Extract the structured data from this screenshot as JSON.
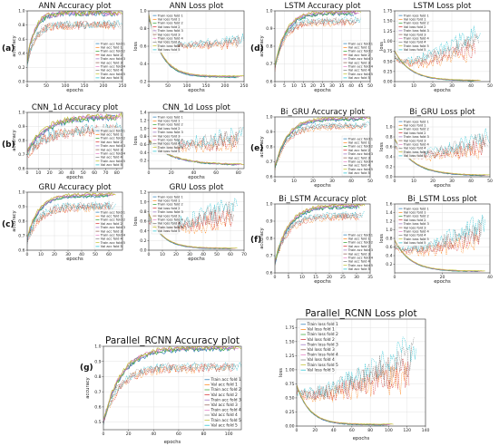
{
  "colors": [
    "#1f77b4",
    "#ff7f0e",
    "#2ca02c",
    "#d62728",
    "#9467bd",
    "#8c564b",
    "#e377c2",
    "#7f7f7f",
    "#bcbd22",
    "#17becf"
  ],
  "panel_labels": [
    "(a)",
    "(b)",
    "(c)",
    "(d)",
    "(e)",
    "(f)",
    "(g)"
  ],
  "chart_data": [
    {
      "id": "ann-acc",
      "type": "line",
      "title": "ANN Accuracy plot",
      "xlabel": "epochs",
      "ylabel": "accuracy",
      "xlim": [
        0,
        250
      ],
      "ylim": [
        0,
        1.0
      ],
      "xticks": [
        0,
        50,
        100,
        150,
        200,
        250
      ],
      "yticks": [
        0,
        0.2,
        0.4,
        0.6,
        0.8,
        1.0
      ],
      "ytick_labels": [
        "0.0",
        "0.2",
        "0.4",
        "0.6",
        "0.8",
        "1.0"
      ],
      "grid": true,
      "legend_position": "center-right",
      "legend": [
        "Train acc fold 1",
        "Val acc fold 1",
        "Train acc fold 2",
        "Val acc fold 2",
        "Train acc fold 3",
        "Val acc fold 3",
        "Train acc fold 4",
        "Val acc fold 4",
        "Train acc fold 5",
        "Val acc fold 5"
      ],
      "series": [
        {
          "kind": "acc",
          "x_end": 250,
          "start": 0.3,
          "plateau": 0.97,
          "rate": 0.05,
          "noise": 0.04
        },
        {
          "kind": "acc",
          "x_end": 250,
          "start": 0.25,
          "plateau": 0.8,
          "rate": 0.05,
          "noise": 0.06
        }
      ]
    },
    {
      "id": "ann-loss",
      "type": "line",
      "title": "ANN Loss plot",
      "xlabel": "epochs",
      "ylabel": "loss",
      "xlim": [
        0,
        250
      ],
      "ylim": [
        0.2,
        1.0
      ],
      "xticks": [
        0,
        50,
        100,
        150,
        200,
        250
      ],
      "yticks": [
        0.2,
        0.4,
        0.6,
        0.8,
        1.0
      ],
      "ytick_labels": [
        "0.2",
        "0.4",
        "0.6",
        "0.8",
        "1.0"
      ],
      "grid": true,
      "legend_position": "top-left",
      "legend": [
        "Train loss fold 1",
        "Val loss fold 1",
        "Train loss fold 2",
        "Val loss fold 2",
        "Train loss fold 3",
        "Val loss fold 3",
        "Train loss fold 4",
        "Val loss fold 4",
        "Train loss fold 5",
        "Val loss fold 5"
      ],
      "series": [
        {
          "kind": "loss",
          "x_end": 250,
          "start": 0.95,
          "floor": 0.25,
          "rate": 0.03,
          "noise": 0.01
        },
        {
          "kind": "vloss",
          "x_end": 250,
          "start": 0.9,
          "floor": 0.55,
          "rate": 0.03,
          "rise": 0.15,
          "noise": 0.05
        }
      ]
    },
    {
      "id": "lstm-acc",
      "type": "line",
      "title": "LSTM Accuracy plot",
      "xlabel": "epochs",
      "ylabel": "accuracy",
      "xlim": [
        0,
        50
      ],
      "ylim": [
        0.6,
        1.0
      ],
      "xticks": [
        0,
        5,
        10,
        15,
        20,
        25,
        30,
        35,
        40,
        45,
        50
      ],
      "yticks": [
        0.6,
        0.7,
        0.8,
        0.9,
        1.0
      ],
      "ytick_labels": [
        "0.6",
        "0.7",
        "0.8",
        "0.9",
        "1.0"
      ],
      "grid": true,
      "legend_position": "center-right",
      "legend": [
        "Train acc fold 1",
        "Val acc fold 1",
        "Train acc fold 2",
        "Val acc fold 2",
        "Train acc fold 3",
        "Val acc fold 3",
        "Train acc fold 4",
        "Val acc fold 4",
        "Train acc fold 5",
        "Val acc fold 5"
      ],
      "series": [
        {
          "kind": "acc",
          "x_end": 45,
          "start": 0.68,
          "plateau": 0.99,
          "rate": 0.18,
          "noise": 0.01
        },
        {
          "kind": "acc",
          "x_end": 45,
          "start": 0.68,
          "plateau": 0.94,
          "rate": 0.2,
          "noise": 0.02
        }
      ]
    },
    {
      "id": "lstm-loss",
      "type": "line",
      "title": "LSTM Loss plot",
      "xlabel": "epochs",
      "ylabel": "loss",
      "xlim": [
        0,
        50
      ],
      "ylim": [
        0,
        1.75
      ],
      "xticks": [
        0,
        10,
        20,
        30,
        40,
        50
      ],
      "yticks": [
        0,
        0.25,
        0.5,
        0.75,
        1.0,
        1.25,
        1.5,
        1.75
      ],
      "ytick_labels": [
        "0.00",
        "0.25",
        "0.50",
        "0.75",
        "1.00",
        "1.25",
        "1.50",
        "1.75"
      ],
      "grid": true,
      "legend_position": "top-left",
      "legend": [
        "Train loss fold 1",
        "Val loss fold 1",
        "Train loss fold 2",
        "Val loss fold 2",
        "Train loss fold 3",
        "Val loss fold 3",
        "Train loss fold 4",
        "Val loss fold 4",
        "Train loss fold 5",
        "Val loss fold 5"
      ],
      "series": [
        {
          "kind": "loss",
          "x_end": 45,
          "start": 0.75,
          "floor": 0.02,
          "rate": 0.12,
          "noise": 0.01
        },
        {
          "kind": "vloss",
          "x_end": 45,
          "start": 0.6,
          "floor": 0.25,
          "rate": 0.15,
          "rise": 1.0,
          "noise": 0.2
        }
      ]
    },
    {
      "id": "cnn-acc",
      "type": "line",
      "title": "CNN_1d Accuracy plot",
      "xlabel": "epochs",
      "ylabel": "accuracy",
      "xlim": [
        0,
        85
      ],
      "ylim": [
        0.6,
        1.0
      ],
      "xticks": [
        0,
        10,
        20,
        30,
        40,
        50,
        60,
        70,
        80
      ],
      "yticks": [
        0.6,
        0.7,
        0.8,
        0.9,
        1.0
      ],
      "ytick_labels": [
        "0.6",
        "0.7",
        "0.8",
        "0.9",
        "1.0"
      ],
      "grid": true,
      "legend_position": "center-right",
      "legend": [
        "Train acc fold 1",
        "Val acc fold 1",
        "Train acc fold 2",
        "Val acc fold 2",
        "Train acc fold 3",
        "Val acc fold 3",
        "Train acc fold 4",
        "Val acc fold 4",
        "Train acc fold 5",
        "Val acc fold 5"
      ],
      "series": [
        {
          "kind": "acc",
          "x_end": 85,
          "start": 0.72,
          "plateau": 0.97,
          "rate": 0.06,
          "noise": 0.02
        },
        {
          "kind": "acc",
          "x_end": 85,
          "start": 0.7,
          "plateau": 0.88,
          "rate": 0.06,
          "noise": 0.04
        }
      ]
    },
    {
      "id": "cnn-loss",
      "type": "line",
      "title": "CNN_1d Loss plot",
      "xlabel": "epochs",
      "ylabel": "loss",
      "xlim": [
        0,
        85
      ],
      "ylim": [
        0,
        1.4
      ],
      "xticks": [
        0,
        20,
        40,
        60,
        80
      ],
      "yticks": [
        0.2,
        0.4,
        0.6,
        0.8,
        1.0,
        1.2,
        1.4
      ],
      "ytick_labels": [
        "0.2",
        "0.4",
        "0.6",
        "0.8",
        "1.0",
        "1.2",
        "1.4"
      ],
      "grid": true,
      "legend_position": "top-left",
      "legend": [
        "Train loss fold 1",
        "Val loss fold 1",
        "Train loss fold 2",
        "Val loss fold 2",
        "Train loss fold 3",
        "Val loss fold 3",
        "Train loss fold 4",
        "Val loss fold 4",
        "Train loss fold 5",
        "Val loss fold 5"
      ],
      "series": [
        {
          "kind": "loss",
          "x_end": 85,
          "start": 0.7,
          "floor": 0.08,
          "rate": 0.05,
          "noise": 0.03
        },
        {
          "kind": "vloss",
          "x_end": 85,
          "start": 0.65,
          "floor": 0.4,
          "rate": 0.05,
          "rise": 0.5,
          "noise": 0.2
        }
      ]
    },
    {
      "id": "bigru-acc",
      "type": "line",
      "title": "Bi_GRU Accuracy plot",
      "xlabel": "epochs",
      "ylabel": "accuracy",
      "xlim": [
        0,
        50
      ],
      "ylim": [
        0.6,
        1.0
      ],
      "xticks": [
        0,
        10,
        20,
        30,
        40,
        50
      ],
      "yticks": [
        0.6,
        0.7,
        0.8,
        0.9,
        1.0
      ],
      "ytick_labels": [
        "0.6",
        "0.7",
        "0.8",
        "0.9",
        "1.0"
      ],
      "grid": true,
      "legend_position": "center-right",
      "legend": [
        "Train acc fold 1",
        "Val acc fold 1",
        "Train acc fold 2",
        "Val acc fold 2",
        "Train acc fold 3",
        "Val acc fold 3",
        "Train acc fold 4",
        "Val acc fold 4",
        "Train acc fold 5",
        "Val acc fold 5"
      ],
      "series": [
        {
          "kind": "acc",
          "x_end": 50,
          "start": 0.66,
          "plateau": 0.99,
          "rate": 0.15,
          "noise": 0.01
        },
        {
          "kind": "acc",
          "x_end": 50,
          "start": 0.66,
          "plateau": 0.94,
          "rate": 0.16,
          "noise": 0.02
        }
      ]
    },
    {
      "id": "bigru-loss",
      "type": "line",
      "title": "Bi_GRU Loss plot",
      "xlabel": "epochs",
      "ylabel": "loss",
      "xlim": [
        0,
        50
      ],
      "ylim": [
        0,
        1.2
      ],
      "xticks": [
        0,
        10,
        20,
        30,
        40,
        50
      ],
      "yticks": [
        0,
        0.2,
        0.4,
        0.6,
        0.8,
        1.0
      ],
      "ytick_labels": [
        "0.0",
        "0.2",
        "0.4",
        "0.6",
        "0.8",
        "1.0"
      ],
      "grid": true,
      "legend_position": "top-left",
      "legend": [
        "Train loss fold 1",
        "Val loss fold 1",
        "Train loss fold 2",
        "Val loss fold 2",
        "Train loss fold 3",
        "Val loss fold 3",
        "Train loss fold 4",
        "Val loss fold 4",
        "Train loss fold 5",
        "Val loss fold 5"
      ],
      "series": [
        {
          "kind": "loss",
          "x_end": 50,
          "start": 0.75,
          "floor": 0.02,
          "rate": 0.1,
          "noise": 0.01
        },
        {
          "kind": "vloss",
          "x_end": 50,
          "start": 0.6,
          "floor": 0.25,
          "rate": 0.12,
          "rise": 0.6,
          "noise": 0.15
        }
      ]
    },
    {
      "id": "gru-acc",
      "type": "line",
      "title": "GRU Accuracy plot",
      "xlabel": "epochs",
      "ylabel": "accuracy",
      "xlim": [
        0,
        70
      ],
      "ylim": [
        0.6,
        1.0
      ],
      "xticks": [
        0,
        10,
        20,
        30,
        40,
        50,
        60
      ],
      "yticks": [
        0.6,
        0.7,
        0.8,
        0.9,
        1.0
      ],
      "ytick_labels": [
        "0.6",
        "0.7",
        "0.8",
        "0.9",
        "1.0"
      ],
      "grid": true,
      "legend_position": "center-right",
      "legend": [
        "Train acc fold 1",
        "Val acc fold 1",
        "Train acc fold 2",
        "Val acc fold 2",
        "Train acc fold 3",
        "Val acc fold 3",
        "Train acc fold 4",
        "Val acc fold 4",
        "Train acc fold 5",
        "Val acc fold 5"
      ],
      "series": [
        {
          "kind": "acc",
          "x_end": 65,
          "start": 0.68,
          "plateau": 0.98,
          "rate": 0.12,
          "noise": 0.01
        },
        {
          "kind": "acc",
          "x_end": 65,
          "start": 0.66,
          "plateau": 0.9,
          "rate": 0.12,
          "noise": 0.03
        }
      ]
    },
    {
      "id": "gru-loss",
      "type": "line",
      "title": "GRU Loss plot",
      "xlabel": "epochs",
      "ylabel": "loss",
      "xlim": [
        0,
        70
      ],
      "ylim": [
        0,
        1.2
      ],
      "xticks": [
        0,
        10,
        20,
        30,
        40,
        50,
        60,
        70
      ],
      "yticks": [
        0,
        0.2,
        0.4,
        0.6,
        0.8,
        1.0,
        1.2
      ],
      "ytick_labels": [
        "0.0",
        "0.2",
        "0.4",
        "0.6",
        "0.8",
        "1.0",
        "1.2"
      ],
      "grid": true,
      "legend_position": "top-left",
      "legend": [
        "Train loss fold 1",
        "Val loss fold 1",
        "Train loss fold 2",
        "Val loss fold 2",
        "Train loss fold 3",
        "Val loss fold 3",
        "Train loss fold 4",
        "Val loss fold 4",
        "Train loss fold 5",
        "Val loss fold 5"
      ],
      "series": [
        {
          "kind": "loss",
          "x_end": 65,
          "start": 0.75,
          "floor": 0.03,
          "rate": 0.1,
          "noise": 0.01
        },
        {
          "kind": "vloss",
          "x_end": 65,
          "start": 0.6,
          "floor": 0.3,
          "rate": 0.1,
          "rise": 0.7,
          "noise": 0.2
        }
      ]
    },
    {
      "id": "bilstm-acc",
      "type": "line",
      "title": "Bi_LSTM Accuracy plot",
      "xlabel": "epochs",
      "ylabel": "accuracy",
      "xlim": [
        0,
        35
      ],
      "ylim": [
        0.6,
        1.0
      ],
      "xticks": [
        0,
        5,
        10,
        15,
        20,
        25,
        30,
        35
      ],
      "yticks": [
        0.6,
        0.7,
        0.8,
        0.9,
        1.0
      ],
      "ytick_labels": [
        "0.6",
        "0.7",
        "0.8",
        "0.9",
        "1.0"
      ],
      "grid": true,
      "legend_position": "center-right",
      "legend": [
        "Train acc fold 1",
        "Val acc fold 1",
        "Train acc fold 2",
        "Val acc fold 2",
        "Train acc fold 3",
        "Val acc fold 3",
        "Train acc fold 4",
        "Val acc fold 4",
        "Train acc fold 5",
        "Val acc fold 5"
      ],
      "series": [
        {
          "kind": "acc",
          "x_end": 33,
          "start": 0.66,
          "plateau": 0.99,
          "rate": 0.2,
          "noise": 0.01
        },
        {
          "kind": "acc",
          "x_end": 33,
          "start": 0.66,
          "plateau": 0.93,
          "rate": 0.22,
          "noise": 0.02
        }
      ]
    },
    {
      "id": "bilstm-loss",
      "type": "line",
      "title": "Bi_LSTM Loss plot",
      "xlabel": "epochs",
      "ylabel": "loss",
      "xlim": [
        0,
        40
      ],
      "ylim": [
        0,
        1.6
      ],
      "xticks": [
        0,
        20,
        40
      ],
      "yticks": [
        0.2,
        0.4,
        0.6,
        0.8,
        1.0,
        1.2,
        1.4,
        1.6
      ],
      "ytick_labels": [
        "0.2",
        "0.4",
        "0.6",
        "0.8",
        "1.0",
        "1.2",
        "1.4",
        "1.6"
      ],
      "grid": true,
      "legend_position": "top-left",
      "legend": [
        "Train loss fold 1",
        "Val loss fold 1",
        "Train loss fold 2",
        "Val loss fold 2",
        "Train loss fold 3",
        "Val loss fold 3",
        "Train loss fold 4",
        "Val loss fold 4",
        "Train loss fold 5",
        "Val loss fold 5"
      ],
      "series": [
        {
          "kind": "loss",
          "x_end": 38,
          "start": 0.75,
          "floor": 0.03,
          "rate": 0.15,
          "noise": 0.01
        },
        {
          "kind": "vloss",
          "x_end": 38,
          "start": 0.6,
          "floor": 0.3,
          "rate": 0.15,
          "rise": 0.9,
          "noise": 0.2
        }
      ]
    },
    {
      "id": "prcnn-acc",
      "type": "line",
      "title": "Parallel_RCNN Accuracy plot",
      "xlabel": "epochs",
      "ylabel": "accuracy",
      "xlim": [
        0,
        110
      ],
      "ylim": [
        0.45,
        1.0
      ],
      "xticks": [
        0,
        20,
        40,
        60,
        80,
        100
      ],
      "yticks": [
        0.5,
        0.6,
        0.7,
        0.8,
        0.9,
        1.0
      ],
      "ytick_labels": [
        "0.5",
        "0.6",
        "0.7",
        "0.8",
        "0.9",
        "1.0"
      ],
      "grid": true,
      "legend_position": "center-right",
      "legend": [
        "Train acc fold 1",
        "Val acc fold 1",
        "Train acc fold 2",
        "Val acc fold 2",
        "Train acc fold 3",
        "Val acc fold 3",
        "Train acc fold 4",
        "Val acc fold 4",
        "Train acc fold 5",
        "Val acc fold 5"
      ],
      "series": [
        {
          "kind": "acc",
          "x_end": 110,
          "start": 0.5,
          "plateau": 0.99,
          "rate": 0.07,
          "noise": 0.015
        },
        {
          "kind": "acc",
          "x_end": 110,
          "start": 0.5,
          "plateau": 0.86,
          "rate": 0.08,
          "noise": 0.03
        }
      ]
    },
    {
      "id": "prcnn-loss",
      "type": "line",
      "title": "Parallel_RCNN Loss plot",
      "xlabel": "epochs",
      "ylabel": "loss",
      "xlim": [
        0,
        140
      ],
      "ylim": [
        0,
        1.9
      ],
      "xticks": [
        0,
        20,
        40,
        60,
        80,
        100,
        120,
        140
      ],
      "yticks": [
        0,
        0.25,
        0.5,
        0.75,
        1.0,
        1.25,
        1.5,
        1.75
      ],
      "ytick_labels": [
        "0.00",
        "0.25",
        "0.50",
        "0.75",
        "1.00",
        "1.25",
        "1.50",
        "1.75"
      ],
      "grid": true,
      "legend_position": "top-left",
      "legend": [
        "Train loss fold 1",
        "Val loss fold 1",
        "Train loss fold 2",
        "Val loss fold 2",
        "Train loss fold 3",
        "Val loss fold 3",
        "Train loss fold 4",
        "Val loss fold 4",
        "Train loss fold 5",
        "Val loss fold 5"
      ],
      "series": [
        {
          "kind": "loss",
          "x_end": 105,
          "start": 0.72,
          "floor": 0.02,
          "rate": 0.07,
          "noise": 0.01
        },
        {
          "kind": "vloss",
          "x_end": 130,
          "start": 0.6,
          "floor": 0.35,
          "rate": 0.05,
          "rise": 1.1,
          "noise": 0.25
        }
      ]
    }
  ]
}
